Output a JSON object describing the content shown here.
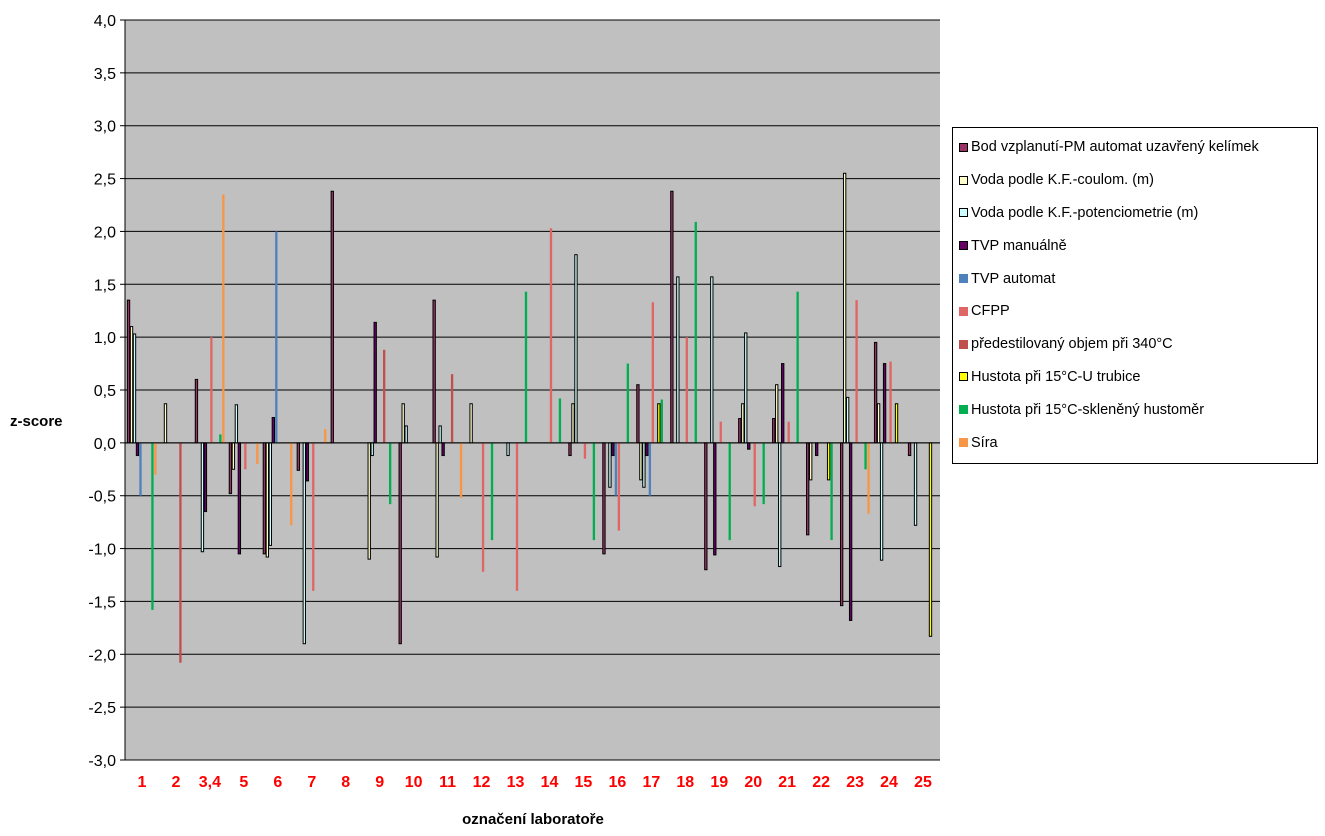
{
  "chart_data": {
    "type": "bar",
    "ylabel": "z-score",
    "xlabel": "označení laboratoře",
    "ylim": [
      -3.0,
      4.0
    ],
    "yticks": [
      "4,0",
      "3,5",
      "3,0",
      "2,5",
      "2,0",
      "1,5",
      "1,0",
      "0,5",
      "0,0",
      "-0,5",
      "-1,0",
      "-1,5",
      "-2,0",
      "-2,5",
      "-3,0"
    ],
    "ytick_values": [
      4.0,
      3.5,
      3.0,
      2.5,
      2.0,
      1.5,
      1.0,
      0.5,
      0.0,
      -0.5,
      -1.0,
      -1.5,
      -2.0,
      -2.5,
      -3.0
    ],
    "categories": [
      "1",
      "2",
      "3,4",
      "5",
      "6",
      "7",
      "8",
      "9",
      "10",
      "11",
      "12",
      "13",
      "14",
      "15",
      "16",
      "17",
      "18",
      "19",
      "20",
      "21",
      "22",
      "23",
      "24",
      "25"
    ],
    "category_label_color": "#ff0000",
    "plot_background": "#c0c0c0",
    "gridlines": true,
    "legend_position": "right",
    "series": [
      {
        "name": "Bod vzplanutí-PM automat uzavřený kelímek",
        "color": "#993366",
        "outline": true,
        "values": [
          1.35,
          null,
          0.6,
          -0.48,
          -1.05,
          -0.26,
          2.38,
          null,
          -1.9,
          1.35,
          null,
          null,
          null,
          -0.12,
          -1.05,
          0.55,
          2.38,
          -1.2,
          0.23,
          0.23,
          -0.87,
          -1.54,
          0.95,
          -0.12
        ]
      },
      {
        "name": "Voda podle K.F.-coulom. (m)",
        "color": "#ffffcc",
        "outline": true,
        "values": [
          1.1,
          0.37,
          null,
          -0.25,
          -1.08,
          null,
          null,
          -1.1,
          0.37,
          -1.08,
          0.37,
          null,
          null,
          0.37,
          null,
          -0.35,
          null,
          null,
          0.37,
          0.55,
          -0.35,
          2.55,
          0.37,
          null
        ]
      },
      {
        "name": "Voda podle K.F.-potenciometrie (m)",
        "color": "#ccffff",
        "outline": true,
        "values": [
          1.03,
          null,
          -1.03,
          0.36,
          -0.97,
          -1.9,
          null,
          -0.12,
          0.16,
          0.16,
          null,
          -0.12,
          null,
          1.78,
          -0.42,
          -0.42,
          1.57,
          1.57,
          1.04,
          -1.17,
          null,
          0.43,
          -1.11,
          -0.78
        ]
      },
      {
        "name": "TVP manuálně",
        "color": "#660066",
        "outline": true,
        "values": [
          -0.12,
          null,
          -0.65,
          -1.05,
          0.24,
          -0.36,
          null,
          1.14,
          null,
          -0.12,
          null,
          null,
          null,
          null,
          -0.12,
          -0.12,
          null,
          -1.06,
          -0.06,
          0.75,
          -0.12,
          -1.68,
          0.75,
          null
        ]
      },
      {
        "name": "TVP automat",
        "color": "#4f81bd",
        "outline": false,
        "values": [
          -0.5,
          null,
          null,
          null,
          2.0,
          null,
          null,
          null,
          null,
          null,
          null,
          null,
          null,
          null,
          -0.5,
          -0.5,
          null,
          null,
          null,
          null,
          null,
          null,
          null,
          null
        ]
      },
      {
        "name": "CFPP",
        "color": "#e06666",
        "outline": false,
        "values": [
          null,
          null,
          1.0,
          -0.25,
          null,
          -1.4,
          null,
          null,
          null,
          null,
          -1.22,
          -1.4,
          2.03,
          -0.15,
          -0.83,
          1.33,
          1.0,
          0.2,
          -0.6,
          0.2,
          null,
          1.35,
          0.77,
          null
        ]
      },
      {
        "name": "předestilovaný objem při 340°C",
        "color": "#c0504d",
        "outline": false,
        "values": [
          null,
          -2.08,
          null,
          null,
          null,
          null,
          null,
          0.88,
          null,
          0.65,
          null,
          null,
          null,
          null,
          null,
          null,
          null,
          null,
          null,
          null,
          null,
          null,
          null,
          null
        ]
      },
      {
        "name": "Hustota při 15°C-U trubice",
        "color": "#ffff00",
        "outline": true,
        "values": [
          null,
          null,
          null,
          null,
          null,
          null,
          null,
          null,
          null,
          null,
          null,
          null,
          null,
          null,
          null,
          0.37,
          null,
          null,
          null,
          null,
          -0.35,
          null,
          0.37,
          -1.83
        ]
      },
      {
        "name": "Hustota při 15°C-skleněný hustoměr",
        "color": "#00b050",
        "outline": false,
        "values": [
          -1.58,
          null,
          0.08,
          null,
          null,
          null,
          null,
          -0.58,
          null,
          null,
          -0.92,
          1.43,
          0.42,
          -0.92,
          0.75,
          0.41,
          2.09,
          -0.92,
          -0.58,
          1.43,
          -0.92,
          -0.25,
          null,
          null
        ]
      },
      {
        "name": "Síra",
        "color": "#f79646",
        "outline": false,
        "values": [
          -0.3,
          null,
          2.35,
          -0.2,
          -0.78,
          0.13,
          null,
          null,
          null,
          -0.52,
          null,
          null,
          null,
          null,
          null,
          null,
          null,
          null,
          null,
          null,
          null,
          -0.67,
          null,
          null
        ]
      }
    ]
  }
}
